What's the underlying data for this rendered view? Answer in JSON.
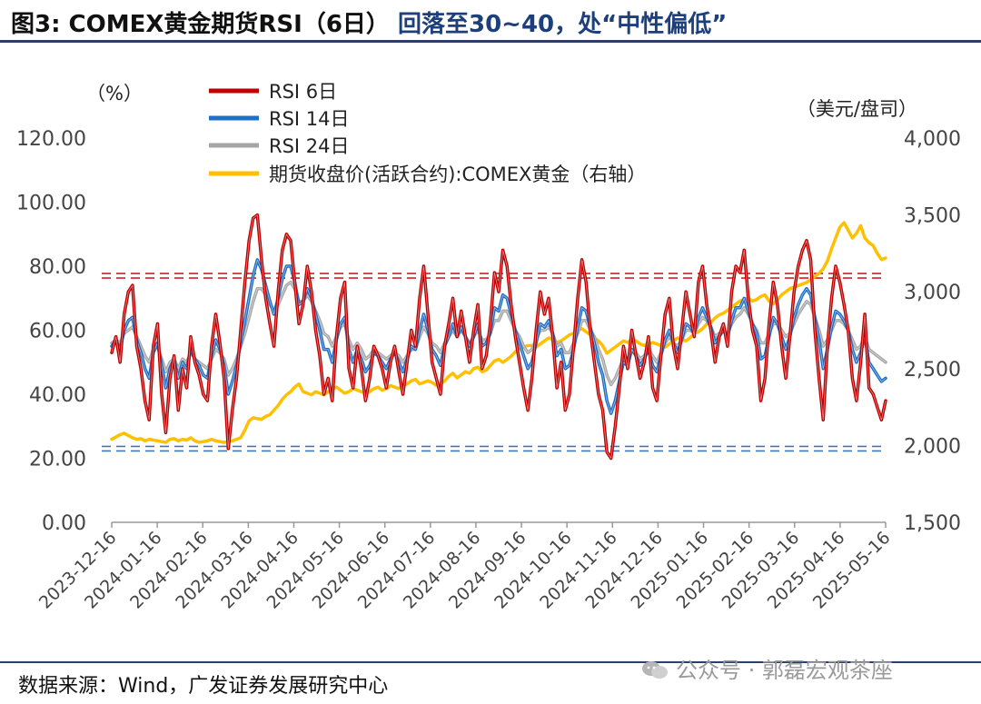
{
  "title": {
    "prefix": "图3: COMEX黄金期货RSI（6日）",
    "highlight": "回落至30~40，处“中性偏低”"
  },
  "source": "数据来源：Wind，广发证券发展研究中心",
  "watermark": "公众号 · 郭磊宏观茶座",
  "chart_data": {
    "type": "line",
    "left_unit": "（%）",
    "right_unit": "（美元/盘司）",
    "left_axis": {
      "min": 0,
      "max": 120,
      "ticks": [
        "0.00",
        "20.00",
        "40.00",
        "60.00",
        "80.00",
        "100.00",
        "120.00"
      ]
    },
    "right_axis": {
      "min": 1500,
      "max": 4000,
      "ticks": [
        "1,500",
        "2,000",
        "2,500",
        "3,000",
        "3,500",
        "4,000"
      ]
    },
    "x_labels": [
      "2023-12-16",
      "2024-01-16",
      "2024-02-16",
      "2024-03-16",
      "2024-04-16",
      "2024-05-16",
      "2024-06-16",
      "2024-07-16",
      "2024-08-16",
      "2024-09-16",
      "2024-10-16",
      "2024-11-16",
      "2024-12-16",
      "2025-01-16",
      "2025-02-16",
      "2025-03-16",
      "2025-04-16",
      "2025-05-16"
    ],
    "reference_lines": [
      {
        "axis": "left",
        "value": 77,
        "color": "#d42020",
        "style": "dashed-double"
      },
      {
        "axis": "left",
        "value": 23,
        "color": "#3a78c4",
        "style": "dashed-double"
      }
    ],
    "series": [
      {
        "name": "RSI 6日",
        "axis": "left",
        "color": "#c00000",
        "width": 3.5,
        "values": [
          53,
          58,
          50,
          65,
          72,
          74,
          55,
          48,
          38,
          32,
          55,
          62,
          40,
          28,
          45,
          52,
          35,
          48,
          42,
          58,
          50,
          46,
          40,
          38,
          55,
          65,
          56,
          45,
          23,
          35,
          45,
          60,
          75,
          88,
          95,
          96,
          82,
          70,
          62,
          55,
          72,
          85,
          90,
          88,
          75,
          62,
          68,
          80,
          72,
          60,
          52,
          40,
          45,
          38,
          58,
          70,
          75,
          48,
          42,
          55,
          48,
          38,
          45,
          55,
          52,
          48,
          42,
          50,
          55,
          47,
          40,
          50,
          60,
          55,
          70,
          80,
          65,
          50,
          45,
          40,
          55,
          62,
          70,
          58,
          66,
          58,
          50,
          60,
          68,
          48,
          52,
          62,
          78,
          72,
          85,
          80,
          68,
          58,
          50,
          42,
          35,
          45,
          60,
          72,
          65,
          70,
          58,
          42,
          50,
          35,
          40,
          55,
          70,
          82,
          75,
          60,
          50,
          40,
          35,
          22,
          20,
          30,
          42,
          55,
          48,
          60,
          52,
          45,
          50,
          58,
          42,
          38,
          52,
          65,
          70,
          55,
          48,
          60,
          72,
          65,
          58,
          75,
          80,
          68,
          60,
          50,
          58,
          62,
          55,
          72,
          80,
          78,
          85,
          70,
          60,
          55,
          38,
          45,
          62,
          75,
          68,
          55,
          45,
          58,
          72,
          80,
          85,
          88,
          82,
          60,
          45,
          32,
          55,
          70,
          80,
          75,
          68,
          60,
          45,
          38,
          50,
          65,
          42,
          40,
          36,
          32,
          38
        ]
      },
      {
        "name": "RSI 14日",
        "axis": "left",
        "color": "#1f6fc5",
        "width": 3.5,
        "values": [
          55,
          57,
          54,
          60,
          63,
          64,
          57,
          53,
          48,
          45,
          53,
          56,
          49,
          42,
          48,
          51,
          45,
          50,
          48,
          54,
          51,
          49,
          46,
          45,
          52,
          57,
          54,
          49,
          40,
          44,
          49,
          56,
          63,
          70,
          77,
          82,
          79,
          74,
          69,
          65,
          70,
          76,
          80,
          80,
          75,
          68,
          69,
          73,
          70,
          65,
          60,
          54,
          54,
          50,
          57,
          62,
          64,
          54,
          50,
          54,
          51,
          47,
          49,
          53,
          52,
          50,
          48,
          51,
          53,
          50,
          47,
          51,
          55,
          54,
          60,
          65,
          60,
          54,
          52,
          49,
          55,
          58,
          62,
          58,
          61,
          58,
          55,
          58,
          62,
          55,
          56,
          59,
          67,
          66,
          71,
          70,
          65,
          60,
          56,
          52,
          48,
          50,
          56,
          62,
          61,
          63,
          59,
          52,
          54,
          48,
          49,
          54,
          61,
          67,
          66,
          61,
          56,
          50,
          46,
          38,
          34,
          38,
          44,
          50,
          49,
          54,
          52,
          49,
          51,
          54,
          49,
          47,
          52,
          57,
          60,
          56,
          53,
          57,
          62,
          61,
          59,
          64,
          67,
          64,
          61,
          56,
          58,
          60,
          58,
          63,
          67,
          67,
          70,
          66,
          62,
          59,
          51,
          52,
          58,
          64,
          62,
          58,
          54,
          58,
          64,
          68,
          71,
          73,
          71,
          64,
          57,
          48,
          54,
          61,
          66,
          65,
          63,
          60,
          54,
          50,
          53,
          58,
          50,
          48,
          46,
          44,
          45
        ]
      },
      {
        "name": "RSI 24日",
        "axis": "left",
        "color": "#a6a6a6",
        "width": 3.5,
        "values": [
          56,
          57,
          56,
          59,
          60,
          61,
          58,
          55,
          52,
          50,
          54,
          55,
          51,
          47,
          50,
          51,
          48,
          51,
          50,
          53,
          51,
          50,
          49,
          48,
          51,
          54,
          53,
          51,
          46,
          48,
          51,
          55,
          59,
          64,
          69,
          73,
          73,
          71,
          68,
          66,
          68,
          71,
          74,
          75,
          73,
          69,
          69,
          71,
          69,
          66,
          63,
          59,
          58,
          55,
          58,
          61,
          62,
          57,
          54,
          56,
          54,
          51,
          52,
          54,
          53,
          52,
          51,
          52,
          53,
          52,
          50,
          52,
          54,
          54,
          58,
          61,
          59,
          56,
          55,
          53,
          56,
          58,
          60,
          58,
          60,
          58,
          56,
          58,
          60,
          57,
          57,
          59,
          63,
          63,
          66,
          66,
          63,
          60,
          58,
          55,
          53,
          54,
          57,
          60,
          60,
          61,
          59,
          55,
          56,
          53,
          53,
          56,
          59,
          63,
          63,
          60,
          58,
          54,
          51,
          46,
          43,
          45,
          48,
          51,
          51,
          54,
          53,
          51,
          52,
          54,
          52,
          50,
          53,
          56,
          58,
          56,
          55,
          57,
          60,
          60,
          59,
          62,
          64,
          63,
          61,
          58,
          59,
          60,
          59,
          62,
          64,
          65,
          67,
          65,
          62,
          60,
          56,
          56,
          59,
          62,
          62,
          60,
          58,
          59,
          62,
          65,
          67,
          69,
          68,
          64,
          60,
          55,
          57,
          60,
          63,
          63,
          62,
          60,
          57,
          54,
          55,
          58,
          54,
          53,
          52,
          51,
          50
        ]
      },
      {
        "name": "期货收盘价(活跃合约):COMEX黄金（右轴）",
        "axis": "right",
        "color": "#ffc000",
        "width": 3.5,
        "values": [
          2040,
          2055,
          2070,
          2080,
          2065,
          2050,
          2040,
          2045,
          2030,
          2040,
          2035,
          2030,
          2025,
          2020,
          2040,
          2045,
          2030,
          2040,
          2035,
          2050,
          2030,
          2020,
          2025,
          2030,
          2040,
          2030,
          2025,
          2020,
          2025,
          2030,
          2040,
          2050,
          2100,
          2160,
          2180,
          2175,
          2170,
          2190,
          2200,
          2230,
          2260,
          2300,
          2330,
          2350,
          2380,
          2400,
          2350,
          2340,
          2330,
          2350,
          2340,
          2330,
          2350,
          2370,
          2380,
          2360,
          2340,
          2350,
          2370,
          2360,
          2350,
          2340,
          2350,
          2370,
          2380,
          2360,
          2370,
          2390,
          2380,
          2370,
          2390,
          2400,
          2420,
          2430,
          2400,
          2410,
          2420,
          2410,
          2390,
          2400,
          2420,
          2450,
          2470,
          2440,
          2460,
          2480,
          2470,
          2500,
          2510,
          2480,
          2490,
          2520,
          2550,
          2560,
          2540,
          2560,
          2580,
          2610,
          2630,
          2640,
          2650,
          2650,
          2640,
          2660,
          2680,
          2700,
          2690,
          2670,
          2680,
          2700,
          2720,
          2730,
          2750,
          2760,
          2740,
          2720,
          2700,
          2680,
          2650,
          2600,
          2620,
          2640,
          2660,
          2680,
          2670,
          2690,
          2680,
          2660,
          2650,
          2660,
          2670,
          2660,
          2650,
          2640,
          2660,
          2680,
          2700,
          2690,
          2680,
          2700,
          2730,
          2740,
          2760,
          2790,
          2800,
          2830,
          2850,
          2860,
          2880,
          2900,
          2920,
          2940,
          2950,
          2960,
          2940,
          2950,
          2970,
          2980,
          2940,
          2920,
          2950,
          2980,
          3000,
          3020,
          3030,
          3040,
          3050,
          3060,
          3080,
          3100,
          3120,
          3150,
          3200,
          3280,
          3350,
          3420,
          3450,
          3400,
          3350,
          3380,
          3430,
          3350,
          3320,
          3300,
          3250,
          3210,
          3220
        ]
      }
    ]
  }
}
